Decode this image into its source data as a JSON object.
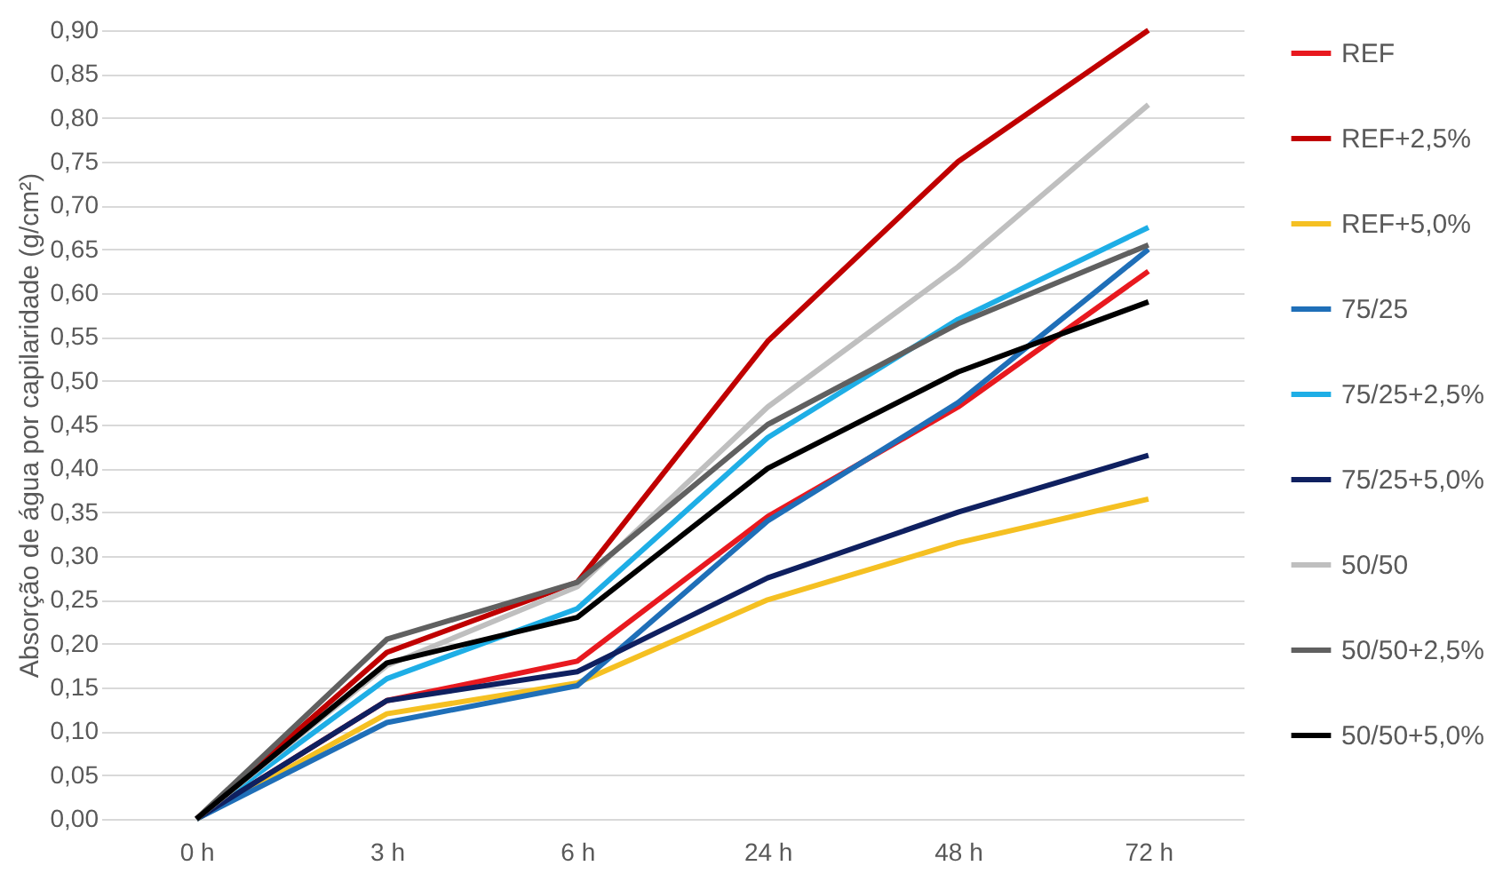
{
  "chart_data": {
    "type": "line",
    "ylabel": "Absorção de água por capilaridade (g/cm²)",
    "categories": [
      "0 h",
      "3 h",
      "6 h",
      "24 h",
      "48 h",
      "72 h"
    ],
    "ylim": [
      0,
      0.9
    ],
    "yticks": [
      {
        "value": 0,
        "label": "0,00"
      },
      {
        "value": 0.05,
        "label": "0,05"
      },
      {
        "value": 0.1,
        "label": "0,10"
      },
      {
        "value": 0.15,
        "label": "0,15"
      },
      {
        "value": 0.2,
        "label": "0,20"
      },
      {
        "value": 0.25,
        "label": "0,25"
      },
      {
        "value": 0.3,
        "label": "0,30"
      },
      {
        "value": 0.35,
        "label": "0,35"
      },
      {
        "value": 0.4,
        "label": "0,40"
      },
      {
        "value": 0.45,
        "label": "0,45"
      },
      {
        "value": 0.5,
        "label": "0,50"
      },
      {
        "value": 0.55,
        "label": "0,55"
      },
      {
        "value": 0.6,
        "label": "0,60"
      },
      {
        "value": 0.65,
        "label": "0,65"
      },
      {
        "value": 0.7,
        "label": "0,70"
      },
      {
        "value": 0.75,
        "label": "0,75"
      },
      {
        "value": 0.8,
        "label": "0,80"
      },
      {
        "value": 0.85,
        "label": "0,85"
      },
      {
        "value": 0.9,
        "label": "0,90"
      }
    ],
    "grid": "y",
    "legend": "right",
    "marker": "none",
    "line_style": "solid",
    "series": [
      {
        "name": "REF",
        "color": "#e8191f",
        "values": [
          0,
          0.135,
          0.18,
          0.345,
          0.47,
          0.625
        ]
      },
      {
        "name": "REF+2,5%",
        "color": "#c00000",
        "values": [
          0,
          0.19,
          0.27,
          0.545,
          0.75,
          0.9
        ]
      },
      {
        "name": "REF+5,0%",
        "color": "#f5c022",
        "values": [
          0,
          0.12,
          0.155,
          0.25,
          0.315,
          0.365
        ]
      },
      {
        "name": "75/25",
        "color": "#1f6fb8",
        "values": [
          0,
          0.11,
          0.152,
          0.34,
          0.475,
          0.65
        ]
      },
      {
        "name": "75/25+2,5%",
        "color": "#1eaee6",
        "values": [
          0,
          0.16,
          0.24,
          0.435,
          0.57,
          0.675
        ]
      },
      {
        "name": "75/25+5,0%",
        "color": "#0f2060",
        "values": [
          0,
          0.135,
          0.168,
          0.275,
          0.35,
          0.415
        ]
      },
      {
        "name": "50/50",
        "color": "#bfbfbf",
        "values": [
          0,
          0.175,
          0.265,
          0.47,
          0.63,
          0.815
        ]
      },
      {
        "name": "50/50+2,5%",
        "color": "#606060",
        "values": [
          0,
          0.205,
          0.27,
          0.45,
          0.565,
          0.655
        ]
      },
      {
        "name": "50/50+5,0%",
        "color": "#000000",
        "values": [
          0,
          0.178,
          0.23,
          0.4,
          0.51,
          0.59
        ]
      }
    ]
  }
}
